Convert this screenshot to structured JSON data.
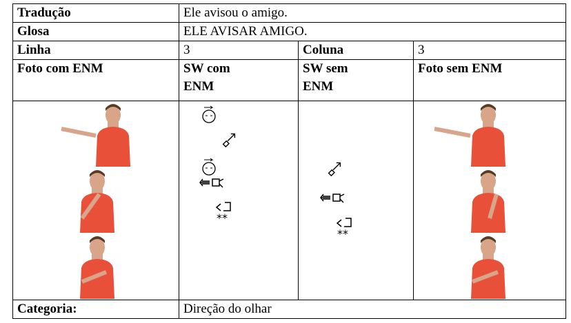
{
  "table": {
    "rows": [
      [
        "Tradução",
        "Ele avisou o amigo."
      ],
      [
        "Glosa",
        "ELE AVISAR AMIGO."
      ],
      [
        "Linha",
        "3",
        "Coluna",
        "3"
      ],
      [
        "Foto com ENM",
        "SW com ENM",
        "SW sem ENM",
        "Foto sem ENM"
      ],
      [
        "Categoria:",
        "Direção do olhar"
      ]
    ]
  }
}
